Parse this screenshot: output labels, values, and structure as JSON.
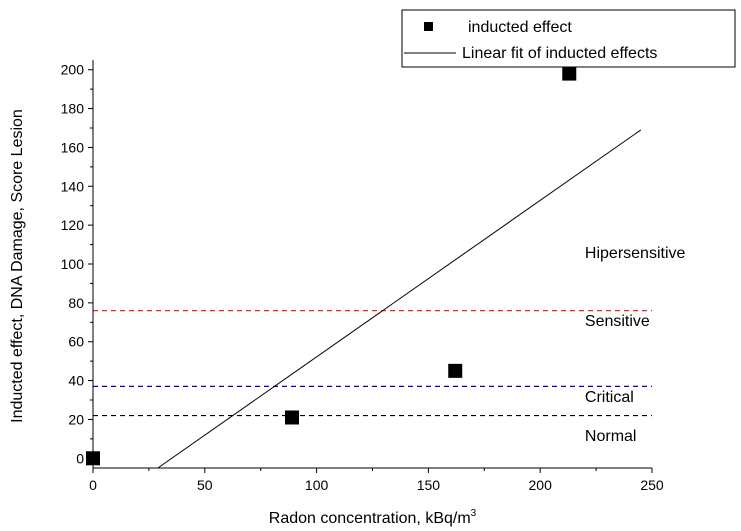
{
  "chart_data": {
    "type": "scatter",
    "xlabel": "Radon concentration, kBq/m",
    "xlabel_superscript": "3",
    "ylabel": "Inducted effect, DNA Damage, Score Lesion",
    "xlim": [
      0,
      250
    ],
    "ylim": [
      -5,
      205
    ],
    "x_ticks": [
      0,
      50,
      100,
      150,
      200,
      250
    ],
    "y_ticks": [
      0,
      20,
      40,
      60,
      80,
      100,
      120,
      140,
      160,
      180,
      200
    ],
    "grid": false,
    "legend_position": "top-right",
    "series": [
      {
        "name": "inducted effect",
        "kind": "scatter",
        "color": "#000000",
        "marker": "square",
        "x": [
          0,
          89,
          162,
          213
        ],
        "y": [
          0,
          21,
          45,
          198
        ]
      },
      {
        "name": "Linear fit of inducted effects",
        "kind": "line",
        "color": "#000000",
        "x": [
          29,
          245
        ],
        "y": [
          -5,
          169
        ]
      }
    ],
    "reference_lines": [
      {
        "y": 22,
        "color": "#000000",
        "style": "dashed"
      },
      {
        "y": 37,
        "color": "#0000cc",
        "style": "dashed"
      },
      {
        "y": 76,
        "color": "#ee2222",
        "style": "dashed"
      }
    ],
    "annotations": [
      {
        "text": "Hipersensitive",
        "x": 220,
        "y": 103
      },
      {
        "text": "Sensitive",
        "x": 220,
        "y": 68
      },
      {
        "text": "Critical",
        "x": 220,
        "y": 29
      },
      {
        "text": "Normal",
        "x": 220,
        "y": 9
      }
    ]
  }
}
